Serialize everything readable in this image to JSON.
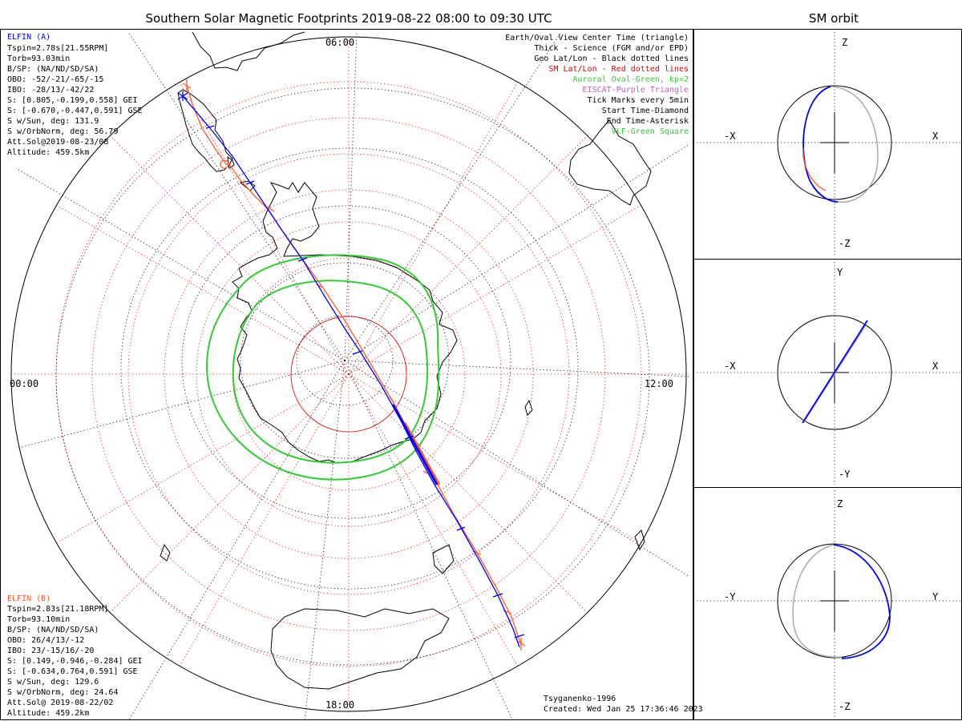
{
  "header": {
    "title": "Southern Solar Magnetic Footprints 2019-08-22 08:00 to 09:30 UTC",
    "orbit_title": "SM orbit"
  },
  "map": {
    "time_labels": {
      "top": "06:00",
      "left": "00:00",
      "right": "12:00",
      "bottom": "18:00"
    }
  },
  "elfin_a": {
    "name": "ELFIN (A)",
    "color": "#0000ff",
    "lines": [
      "Tspin=2.78s[21.55RPM]",
      "Torb=93.03min",
      "B/SP: (NA/ND/SD/SA)",
      "OBO: -52/-21/-65/-15",
      "IBO: -28/13/-42/22",
      "S: [0.805,-0.199,0.558] GEI",
      "S: [-0.670,-0.447,0.591] GSE",
      "S w/Sun, deg: 131.9",
      "S w/OrbNorm, deg: 56.79",
      "Att.Sol@2019-08-23/08",
      "Altitude: 459.5km"
    ]
  },
  "elfin_b": {
    "name": "ELFIN (B)",
    "color": "#ff5a2a",
    "lines": [
      "Tspin=2.83s[21.18RPM]",
      "Torb=93.10min",
      "B/SP: (NA/ND/SD/SA)",
      "OBO: 26/4/13/-12",
      "IBO: 23/-15/16/-20",
      "S: [0.149,-0.946,-0.284] GEI",
      "S: [-0.634,0.764,0.591] GSE",
      "S w/Sun, deg: 129.6",
      "S w/OrbNorm, deg: 24.64",
      "Att.Sol@ 2019-08-22/02",
      "Altitude: 459.2km"
    ]
  },
  "legend": [
    {
      "text": "Earth/Oval View Center Time (triangle)",
      "color": "#000000"
    },
    {
      "text": "Thick - Science (FGM and/or EPD)",
      "color": "#000000"
    },
    {
      "text": "Geo Lat/Lon - Black dotted lines",
      "color": "#000000"
    },
    {
      "text": "SM Lat/Lon - Red dotted lines",
      "color": "#e00000"
    },
    {
      "text": "Auroral Oval-Green, kp=2",
      "color": "#33cc33"
    },
    {
      "text": "EISCAT-Purple Triangle",
      "color": "#cc55cc"
    },
    {
      "text": "Tick Marks every 5min",
      "color": "#000000"
    },
    {
      "text": "Start Time-Diamond",
      "color": "#000000"
    },
    {
      "text": "End Time-Asterisk",
      "color": "#000000"
    },
    {
      "text": "VLF-Green Square",
      "color": "#33cc33"
    }
  ],
  "footer": {
    "model": "Tsyganenko-1996",
    "created": "Created: Wed Jan 25 17:36:46 2023"
  },
  "orbit_panels": [
    {
      "name": "xz",
      "top": "Z",
      "bottom": "-Z",
      "left": "-X",
      "right": "X"
    },
    {
      "name": "xy",
      "top": "Y",
      "bottom": "-Y",
      "left": "-X",
      "right": "X"
    },
    {
      "name": "yz",
      "top": "Z",
      "bottom": "-Z",
      "left": "-Y",
      "right": "Y"
    }
  ]
}
